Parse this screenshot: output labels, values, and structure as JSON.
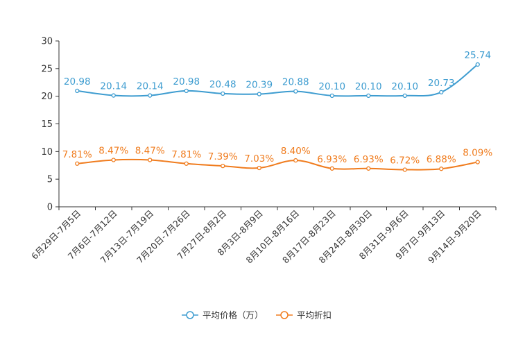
{
  "chart_data": {
    "type": "line",
    "categories": [
      "6月29日-7月5日",
      "7月6日-7月12日",
      "7月13日-7月19日",
      "7月20日-7月26日",
      "7月27日-8月2日",
      "8月3日-8月9日",
      "8月10日-8月16日",
      "8月17日-8月23日",
      "8月24日-8月30日",
      "8月31日-9月6日",
      "9月7日-9月13日",
      "9月14日-9月20日"
    ],
    "ylim": [
      0,
      30
    ],
    "yticks": [
      "0",
      "5",
      "10",
      "15",
      "20",
      "25",
      "30"
    ],
    "series": [
      {
        "name": "平均价格（万）",
        "color": "#3d9cd0",
        "values": [
          20.98,
          20.14,
          20.14,
          20.98,
          20.48,
          20.39,
          20.88,
          20.1,
          20.1,
          20.1,
          20.73,
          25.74
        ],
        "labels": [
          "20.98",
          "20.14",
          "20.14",
          "20.98",
          "20.48",
          "20.39",
          "20.88",
          "20.10",
          "20.10",
          "20.10",
          "20.73",
          "25.74"
        ]
      },
      {
        "name": "平均折扣",
        "color": "#f07c1e",
        "values": [
          7.81,
          8.47,
          8.47,
          7.81,
          7.39,
          7.03,
          8.4,
          6.93,
          6.93,
          6.72,
          6.88,
          8.09
        ],
        "labels": [
          "7.81%",
          "8.47%",
          "8.47%",
          "7.81%",
          "7.39%",
          "7.03%",
          "8.40%",
          "6.93%",
          "6.93%",
          "6.72%",
          "6.88%",
          "8.09%"
        ]
      }
    ],
    "legend_position": "bottom-center",
    "axis_color": "#333333"
  }
}
